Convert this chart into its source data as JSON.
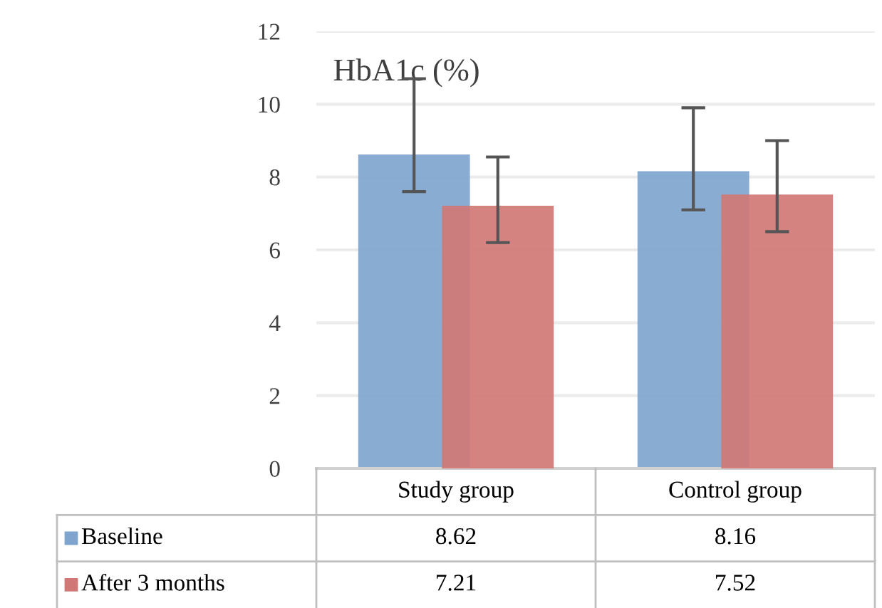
{
  "chart_data": {
    "type": "bar",
    "title": "HbA1c (%)",
    "categories": [
      "Study group",
      "Control group"
    ],
    "series": [
      {
        "name": "Baseline",
        "color": "#7fa5cf",
        "values": [
          8.62,
          8.16
        ],
        "errors": [
          [
            7.6,
            10.7
          ],
          [
            7.1,
            9.9
          ]
        ]
      },
      {
        "name": "After 3 months",
        "color": "#d07876",
        "values": [
          7.21,
          7.52
        ],
        "errors": [
          [
            6.2,
            8.55
          ],
          [
            6.5,
            9.0
          ]
        ]
      }
    ],
    "ylim": [
      0,
      12
    ],
    "yticks": [
      0,
      2,
      4,
      6,
      8,
      10,
      12
    ],
    "grid": "y",
    "data_labels": true,
    "legend": "bottom"
  }
}
